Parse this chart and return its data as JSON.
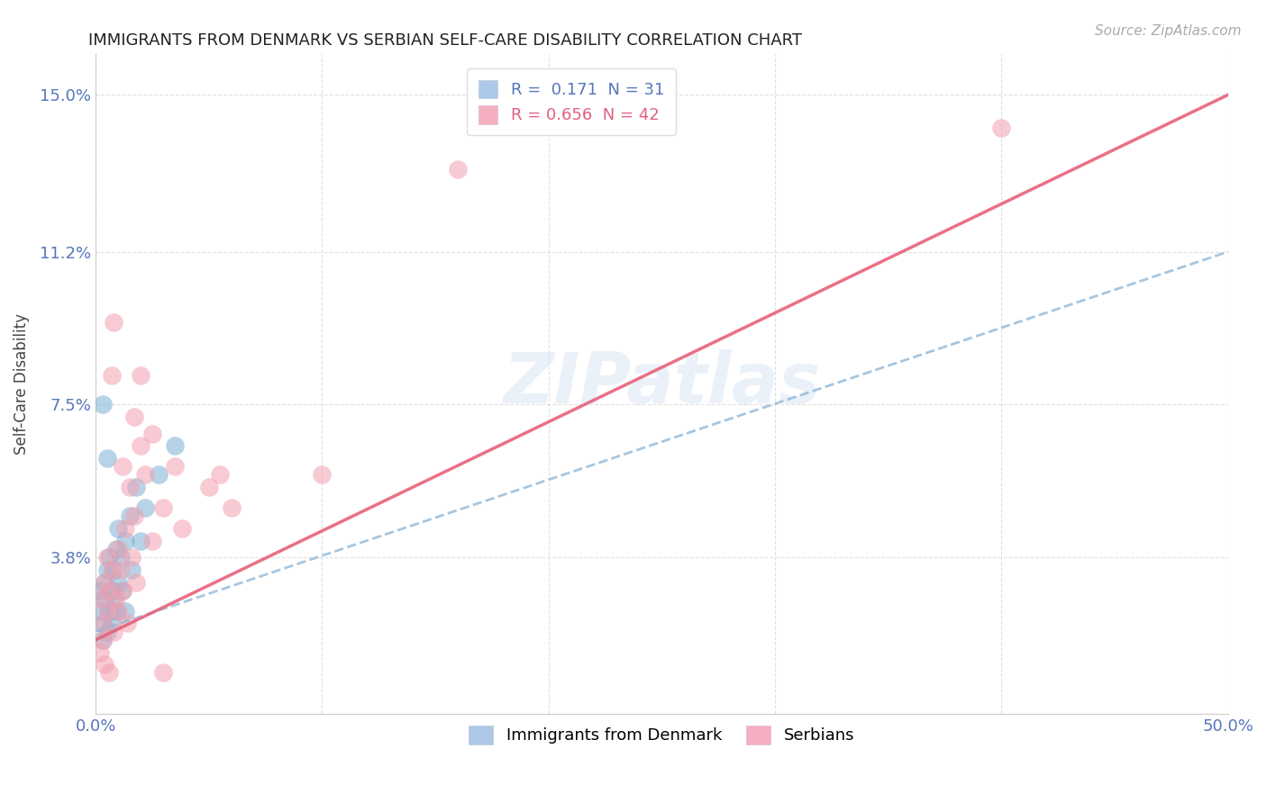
{
  "title": "IMMIGRANTS FROM DENMARK VS SERBIAN SELF-CARE DISABILITY CORRELATION CHART",
  "source": "Source: ZipAtlas.com",
  "ylabel": "Self-Care Disability",
  "xlim": [
    0.0,
    0.5
  ],
  "ylim": [
    0.0,
    0.16
  ],
  "xticks": [
    0.0,
    0.1,
    0.2,
    0.3,
    0.4,
    0.5
  ],
  "xticklabels": [
    "0.0%",
    "",
    "",
    "",
    "",
    "50.0%"
  ],
  "yticks": [
    0.0,
    0.038,
    0.075,
    0.112,
    0.15
  ],
  "yticklabels": [
    "",
    "3.8%",
    "7.5%",
    "11.2%",
    "15.0%"
  ],
  "r_denmark": 0.171,
  "n_denmark": 31,
  "r_serbian": 0.656,
  "n_serbian": 42,
  "blue_color": "#7bafd4",
  "pink_color": "#f4a0b0",
  "legend_blue_fill": "#adc8e8",
  "legend_pink_fill": "#f4b0c0",
  "trend_blue": "#90b8d8",
  "trend_pink": "#e8607a",
  "axis_label_color": "#5577bb",
  "grid_color": "#cccccc",
  "watermark": "ZIPatlas",
  "denmark_points": [
    [
      0.002,
      0.03
    ],
    [
      0.002,
      0.025
    ],
    [
      0.003,
      0.022
    ],
    [
      0.003,
      0.018
    ],
    [
      0.004,
      0.032
    ],
    [
      0.004,
      0.028
    ],
    [
      0.005,
      0.035
    ],
    [
      0.005,
      0.02
    ],
    [
      0.006,
      0.038
    ],
    [
      0.006,
      0.025
    ],
    [
      0.007,
      0.03
    ],
    [
      0.007,
      0.022
    ],
    [
      0.008,
      0.035
    ],
    [
      0.008,
      0.028
    ],
    [
      0.009,
      0.04
    ],
    [
      0.009,
      0.025
    ],
    [
      0.01,
      0.032
    ],
    [
      0.01,
      0.045
    ],
    [
      0.011,
      0.038
    ],
    [
      0.012,
      0.03
    ],
    [
      0.013,
      0.042
    ],
    [
      0.013,
      0.025
    ],
    [
      0.015,
      0.048
    ],
    [
      0.016,
      0.035
    ],
    [
      0.018,
      0.055
    ],
    [
      0.02,
      0.042
    ],
    [
      0.022,
      0.05
    ],
    [
      0.003,
      0.075
    ],
    [
      0.028,
      0.058
    ],
    [
      0.005,
      0.062
    ],
    [
      0.035,
      0.065
    ]
  ],
  "serbian_points": [
    [
      0.002,
      0.028
    ],
    [
      0.003,
      0.022
    ],
    [
      0.003,
      0.018
    ],
    [
      0.004,
      0.032
    ],
    [
      0.005,
      0.025
    ],
    [
      0.005,
      0.038
    ],
    [
      0.006,
      0.03
    ],
    [
      0.007,
      0.035
    ],
    [
      0.008,
      0.02
    ],
    [
      0.009,
      0.028
    ],
    [
      0.01,
      0.04
    ],
    [
      0.01,
      0.025
    ],
    [
      0.011,
      0.035
    ],
    [
      0.012,
      0.03
    ],
    [
      0.013,
      0.045
    ],
    [
      0.014,
      0.022
    ],
    [
      0.015,
      0.055
    ],
    [
      0.016,
      0.038
    ],
    [
      0.017,
      0.048
    ],
    [
      0.018,
      0.032
    ],
    [
      0.02,
      0.065
    ],
    [
      0.022,
      0.058
    ],
    [
      0.025,
      0.042
    ],
    [
      0.007,
      0.082
    ],
    [
      0.008,
      0.095
    ],
    [
      0.03,
      0.05
    ],
    [
      0.035,
      0.06
    ],
    [
      0.038,
      0.045
    ],
    [
      0.05,
      0.055
    ],
    [
      0.055,
      0.058
    ],
    [
      0.017,
      0.072
    ],
    [
      0.02,
      0.082
    ],
    [
      0.006,
      0.01
    ],
    [
      0.03,
      0.01
    ],
    [
      0.1,
      0.058
    ],
    [
      0.16,
      0.132
    ],
    [
      0.002,
      0.015
    ],
    [
      0.004,
      0.012
    ],
    [
      0.012,
      0.06
    ],
    [
      0.025,
      0.068
    ],
    [
      0.4,
      0.142
    ],
    [
      0.06,
      0.05
    ]
  ],
  "dk_trend_x": [
    0.0,
    0.5
  ],
  "dk_trend_y": [
    0.02,
    0.112
  ],
  "sr_trend_x": [
    0.0,
    0.5
  ],
  "sr_trend_y": [
    0.018,
    0.15
  ]
}
